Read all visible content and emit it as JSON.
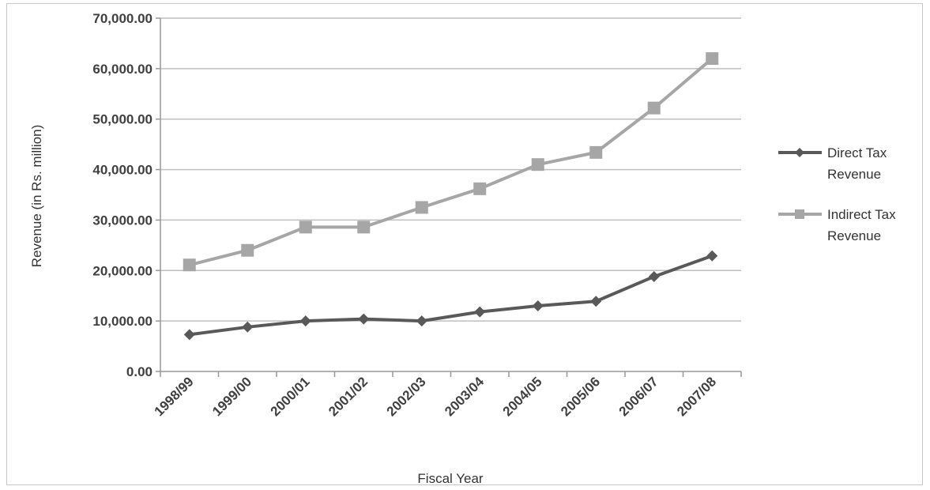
{
  "chart_data": {
    "type": "line",
    "title": "",
    "xlabel": "Fiscal Year",
    "ylabel": "Revenue (in Rs. million)",
    "ylim": [
      0,
      70000
    ],
    "yticks": [
      "0.00",
      "10,000.00",
      "20,000.00",
      "30,000.00",
      "40,000.00",
      "50,000.00",
      "60,000.00",
      "70,000.00"
    ],
    "categories": [
      "1998/99",
      "1999/00",
      "2000/01",
      "2001/02",
      "2002/03",
      "2003/04",
      "2004/05",
      "2005/06",
      "2006/07",
      "2007/08"
    ],
    "grid": true,
    "legend_position": "right",
    "series": [
      {
        "name": "Direct Tax Revenue",
        "legend_lines": [
          "Direct Tax",
          "Revenue"
        ],
        "marker": "diamond",
        "color": "#595959",
        "values": [
          7300,
          8800,
          10000,
          10400,
          10000,
          11800,
          13000,
          13900,
          18800,
          22900
        ]
      },
      {
        "name": "Indirect Tax Revenue",
        "legend_lines": [
          "Indirect Tax",
          "Revenue"
        ],
        "marker": "square",
        "color": "#a6a6a6",
        "values": [
          21100,
          24000,
          28600,
          28600,
          32500,
          36200,
          41000,
          43400,
          52200,
          62000
        ]
      }
    ]
  }
}
